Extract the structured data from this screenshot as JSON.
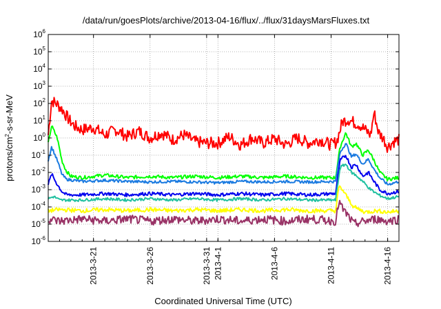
{
  "chart_data": {
    "type": "line",
    "title": "/data/run/goesPlots/archive/2013-04-16/flux/../flux/31daysMarsFluxes.txt",
    "xlabel": "Coordinated Universal Time (UTC)",
    "ylabel": "protons/cm2-s-sr-MeV",
    "ylabel_parts": {
      "pre": "protons/cm",
      "sup": "2",
      "post": "-s-sr-MeV"
    },
    "yscale": "log",
    "ylim": [
      1e-06,
      1000000.0
    ],
    "y_ticks": [
      {
        "base": "10",
        "exp": "-6"
      },
      {
        "base": "10",
        "exp": "-5"
      },
      {
        "base": "10",
        "exp": "-4"
      },
      {
        "base": "10",
        "exp": "-3"
      },
      {
        "base": "10",
        "exp": "-2"
      },
      {
        "base": "10",
        "exp": "-1"
      },
      {
        "base": "10",
        "exp": "0"
      },
      {
        "base": "10",
        "exp": "1"
      },
      {
        "base": "10",
        "exp": "2"
      },
      {
        "base": "10",
        "exp": "3"
      },
      {
        "base": "10",
        "exp": "4"
      },
      {
        "base": "10",
        "exp": "5"
      },
      {
        "base": "10",
        "exp": "6"
      }
    ],
    "x_type": "date",
    "xlim": [
      "2013-03-17",
      "2013-04-17"
    ],
    "x_ticks": [
      {
        "date": "2013-03-21",
        "label": "2013-3-21"
      },
      {
        "date": "2013-03-26",
        "label": "2013-3-26"
      },
      {
        "date": "2013-03-31",
        "label": "2013-3-31"
      },
      {
        "date": "2013-04-01",
        "label": "2013-4-1"
      },
      {
        "date": "2013-04-06",
        "label": "2013-4-6"
      },
      {
        "date": "2013-04-11",
        "label": "2013-4-11"
      },
      {
        "date": "2013-04-16",
        "label": "2013-4-16"
      }
    ],
    "grid": true,
    "series": [
      {
        "color": "#ff0000",
        "points": [
          [
            "2013-03-17",
            1.5
          ],
          [
            "2013-03-17.3",
            150
          ],
          [
            "2013-03-17.8",
            90
          ],
          [
            "2013-03-18.3",
            40
          ],
          [
            "2013-03-18.8",
            12
          ],
          [
            "2013-03-19.3",
            5
          ],
          [
            "2013-03-20",
            3
          ],
          [
            "2013-03-21",
            4
          ],
          [
            "2013-03-22",
            1.5
          ],
          [
            "2013-03-23",
            3
          ],
          [
            "2013-03-24",
            1.2
          ],
          [
            "2013-03-25",
            2.5
          ],
          [
            "2013-03-26",
            1
          ],
          [
            "2013-03-27",
            2
          ],
          [
            "2013-03-28",
            0.8
          ],
          [
            "2013-03-29",
            1.5
          ],
          [
            "2013-03-30",
            0.6
          ],
          [
            "2013-03-31",
            0.5
          ],
          [
            "2013-04-01",
            0.5
          ],
          [
            "2013-04-02",
            1.2
          ],
          [
            "2013-04-03",
            0.4
          ],
          [
            "2013-04-04",
            1
          ],
          [
            "2013-04-05",
            0.5
          ],
          [
            "2013-04-06",
            0.9
          ],
          [
            "2013-04-07",
            0.4
          ],
          [
            "2013-04-08",
            1
          ],
          [
            "2013-04-09",
            0.5
          ],
          [
            "2013-04-10",
            0.8
          ],
          [
            "2013-04-11",
            0.4
          ],
          [
            "2013-04-11.5",
            0.6
          ],
          [
            "2013-04-12",
            9
          ],
          [
            "2013-04-12.5",
            12
          ],
          [
            "2013-04-13",
            8
          ],
          [
            "2013-04-13.5",
            6
          ],
          [
            "2013-04-14",
            3
          ],
          [
            "2013-04-14.5",
            1.5
          ],
          [
            "2013-04-14.8",
            30
          ],
          [
            "2013-04-15.2",
            2
          ],
          [
            "2013-04-15.6",
            1
          ],
          [
            "2013-04-16",
            0.3
          ],
          [
            "2013-04-16.5",
            0.6
          ],
          [
            "2013-04-17",
            0.8
          ]
        ]
      },
      {
        "color": "#00ff00",
        "points": [
          [
            "2013-03-17",
            0.5
          ],
          [
            "2013-03-17.3",
            5
          ],
          [
            "2013-03-17.8",
            1
          ],
          [
            "2013-03-18.2",
            0.05
          ],
          [
            "2013-03-18.6",
            0.012
          ],
          [
            "2013-03-19",
            0.006
          ],
          [
            "2013-03-20",
            0.005
          ],
          [
            "2013-03-22",
            0.007
          ],
          [
            "2013-03-24",
            0.005
          ],
          [
            "2013-03-26",
            0.006
          ],
          [
            "2013-03-28",
            0.005
          ],
          [
            "2013-03-30",
            0.006
          ],
          [
            "2013-04-01",
            0.005
          ],
          [
            "2013-04-03",
            0.006
          ],
          [
            "2013-04-05",
            0.005
          ],
          [
            "2013-04-07",
            0.006
          ],
          [
            "2013-04-09",
            0.005
          ],
          [
            "2013-04-11.4",
            0.005
          ],
          [
            "2013-04-11.8",
            0.3
          ],
          [
            "2013-04-12.3",
            2
          ],
          [
            "2013-04-12.8",
            0.3
          ],
          [
            "2013-04-13.2",
            0.5
          ],
          [
            "2013-04-13.8",
            0.1
          ],
          [
            "2013-04-14.3",
            0.2
          ],
          [
            "2013-04-14.8",
            0.05
          ],
          [
            "2013-04-15.3",
            0.01
          ],
          [
            "2013-04-16",
            0.004
          ],
          [
            "2013-04-17",
            0.005
          ]
        ]
      },
      {
        "color": "#1a7ae0",
        "points": [
          [
            "2013-03-17",
            0.05
          ],
          [
            "2013-03-17.3",
            0.3
          ],
          [
            "2013-03-17.8",
            0.05
          ],
          [
            "2013-03-18.2",
            0.008
          ],
          [
            "2013-03-18.6",
            0.004
          ],
          [
            "2013-03-20",
            0.003
          ],
          [
            "2013-03-22",
            0.0035
          ],
          [
            "2013-03-24",
            0.003
          ],
          [
            "2013-03-26",
            0.0028
          ],
          [
            "2013-03-28",
            0.003
          ],
          [
            "2013-03-30",
            0.0028
          ],
          [
            "2013-04-01",
            0.0025
          ],
          [
            "2013-04-03",
            0.003
          ],
          [
            "2013-04-05",
            0.0028
          ],
          [
            "2013-04-07",
            0.003
          ],
          [
            "2013-04-09",
            0.0028
          ],
          [
            "2013-04-11.4",
            0.003
          ],
          [
            "2013-04-11.8",
            0.15
          ],
          [
            "2013-04-12.3",
            0.5
          ],
          [
            "2013-04-12.8",
            0.08
          ],
          [
            "2013-04-13.2",
            0.12
          ],
          [
            "2013-04-13.8",
            0.03
          ],
          [
            "2013-04-14.3",
            0.06
          ],
          [
            "2013-04-14.8",
            0.015
          ],
          [
            "2013-04-15.3",
            0.005
          ],
          [
            "2013-04-16",
            0.002
          ],
          [
            "2013-04-17",
            0.003
          ]
        ]
      },
      {
        "color": "#0000ee",
        "points": [
          [
            "2013-03-17",
            0.002
          ],
          [
            "2013-03-17.3",
            0.008
          ],
          [
            "2013-03-17.8",
            0.002
          ],
          [
            "2013-03-18.2",
            0.0008
          ],
          [
            "2013-03-18.6",
            0.0005
          ],
          [
            "2013-03-20",
            0.0005
          ],
          [
            "2013-03-22",
            0.0006
          ],
          [
            "2013-03-24",
            0.0005
          ],
          [
            "2013-03-26",
            0.0006
          ],
          [
            "2013-03-28",
            0.0005
          ],
          [
            "2013-03-30",
            0.0006
          ],
          [
            "2013-04-01",
            0.0005
          ],
          [
            "2013-04-03",
            0.0006
          ],
          [
            "2013-04-05",
            0.0005
          ],
          [
            "2013-04-07",
            0.0006
          ],
          [
            "2013-04-09",
            0.0005
          ],
          [
            "2013-04-11.4",
            0.0006
          ],
          [
            "2013-04-11.8",
            0.05
          ],
          [
            "2013-04-12.3",
            0.1
          ],
          [
            "2013-04-12.8",
            0.02
          ],
          [
            "2013-04-13.2",
            0.03
          ],
          [
            "2013-04-13.8",
            0.006
          ],
          [
            "2013-04-14.3",
            0.01
          ],
          [
            "2013-04-14.8",
            0.003
          ],
          [
            "2013-04-15.3",
            0.001
          ],
          [
            "2013-04-16",
            0.0006
          ],
          [
            "2013-04-17",
            0.0008
          ]
        ]
      },
      {
        "color": "#20c0a0",
        "points": [
          [
            "2013-03-17",
            0.0003
          ],
          [
            "2013-03-17.5",
            0.0004
          ],
          [
            "2013-03-18",
            0.00025
          ],
          [
            "2013-03-20",
            0.00025
          ],
          [
            "2013-03-22",
            0.0003
          ],
          [
            "2013-03-24",
            0.00025
          ],
          [
            "2013-03-26",
            0.0003
          ],
          [
            "2013-03-28",
            0.00025
          ],
          [
            "2013-03-30",
            0.0003
          ],
          [
            "2013-04-01",
            0.00025
          ],
          [
            "2013-04-03",
            0.0003
          ],
          [
            "2013-04-05",
            0.00025
          ],
          [
            "2013-04-07",
            0.0003
          ],
          [
            "2013-04-09",
            0.00025
          ],
          [
            "2013-04-11.4",
            0.00025
          ],
          [
            "2013-04-11.8",
            0.02
          ],
          [
            "2013-04-12.3",
            0.03
          ],
          [
            "2013-04-12.8",
            0.01
          ],
          [
            "2013-04-13.3",
            0.006
          ],
          [
            "2013-04-13.8",
            0.003
          ],
          [
            "2013-04-14.5",
            0.001
          ],
          [
            "2013-04-15.2",
            0.0005
          ],
          [
            "2013-04-16",
            0.0003
          ],
          [
            "2013-04-17",
            0.0004
          ]
        ]
      },
      {
        "color": "#ffff00",
        "points": [
          [
            "2013-03-17",
            6e-05
          ],
          [
            "2013-03-18",
            7e-05
          ],
          [
            "2013-03-20",
            6e-05
          ],
          [
            "2013-03-22",
            7e-05
          ],
          [
            "2013-03-24",
            6e-05
          ],
          [
            "2013-03-26",
            7e-05
          ],
          [
            "2013-03-28",
            6e-05
          ],
          [
            "2013-03-30",
            7e-05
          ],
          [
            "2013-04-01",
            6e-05
          ],
          [
            "2013-04-03",
            7e-05
          ],
          [
            "2013-04-05",
            6e-05
          ],
          [
            "2013-04-07",
            7e-05
          ],
          [
            "2013-04-09",
            6e-05
          ],
          [
            "2013-04-11.4",
            6e-05
          ],
          [
            "2013-04-11.7",
            0.0015
          ],
          [
            "2013-04-12",
            0.001
          ],
          [
            "2013-04-12.5",
            0.0003
          ],
          [
            "2013-04-13",
            0.0001
          ],
          [
            "2013-04-14",
            5e-05
          ],
          [
            "2013-04-15",
            6e-05
          ],
          [
            "2013-04-16",
            5e-05
          ],
          [
            "2013-04-17",
            6e-05
          ]
        ]
      },
      {
        "color": "#993366",
        "points": [
          [
            "2013-03-17",
            2e-05
          ],
          [
            "2013-03-18",
            1.5e-05
          ],
          [
            "2013-03-20",
            2e-05
          ],
          [
            "2013-03-22",
            1.5e-05
          ],
          [
            "2013-03-24",
            2e-05
          ],
          [
            "2013-03-26",
            1.5e-05
          ],
          [
            "2013-03-28",
            2e-05
          ],
          [
            "2013-03-30",
            1.5e-05
          ],
          [
            "2013-04-01",
            2e-05
          ],
          [
            "2013-04-03",
            1.5e-05
          ],
          [
            "2013-04-05",
            2e-05
          ],
          [
            "2013-04-07",
            1.5e-05
          ],
          [
            "2013-04-09",
            2e-05
          ],
          [
            "2013-04-11.4",
            1.5e-05
          ],
          [
            "2013-04-11.7",
            0.0002
          ],
          [
            "2013-04-12",
            8e-05
          ],
          [
            "2013-04-12.5",
            3e-05
          ],
          [
            "2013-04-13",
            1e-05
          ],
          [
            "2013-04-14",
            1.5e-05
          ],
          [
            "2013-04-15",
            2e-05
          ],
          [
            "2013-04-16",
            1.5e-05
          ],
          [
            "2013-04-17",
            2e-05
          ]
        ]
      }
    ]
  }
}
